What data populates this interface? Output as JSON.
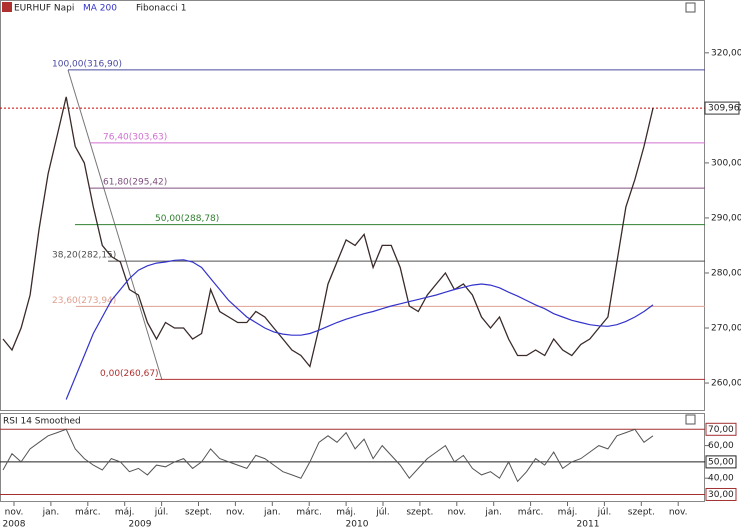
{
  "header": {
    "symbol": "EURHUF Napi",
    "indicator": "MA 200",
    "tool": "Fibonacci 1"
  },
  "chart_data": {
    "type": "line",
    "ylim": [
      255.1,
      329.6
    ],
    "yticks": [
      {
        "value": 260,
        "label": "260,00"
      },
      {
        "value": 270,
        "label": "270,00"
      },
      {
        "value": 280,
        "label": "280,00"
      },
      {
        "value": 290,
        "label": "290,00"
      },
      {
        "value": 300,
        "label": "300,00"
      },
      {
        "value": 310,
        "label": "310,00"
      },
      {
        "value": 320,
        "label": "320,00"
      }
    ],
    "last_price": {
      "value": 309.96,
      "label": "309,96",
      "color": "#cc0000"
    },
    "months": [
      "nov.",
      "jan.",
      "márc.",
      "máj.",
      "júl.",
      "szept.",
      "nov.",
      "jan.",
      "márc.",
      "máj.",
      "júl.",
      "szept.",
      "nov.",
      "jan.",
      "márc.",
      "máj.",
      "júl.",
      "szept.",
      "nov."
    ],
    "years": [
      2008,
      2009,
      2010,
      2011
    ],
    "series": [
      {
        "name": "EURHUF",
        "color": "#3a2a2a",
        "values": [
          268,
          266,
          270,
          276,
          288,
          298,
          305,
          312,
          303,
          300,
          292,
          285,
          283,
          282,
          277,
          276,
          271,
          268,
          271,
          270,
          270,
          268,
          269,
          277,
          273,
          272,
          271,
          271,
          273,
          272,
          270,
          268,
          266,
          265,
          263,
          270,
          278,
          282,
          286,
          285,
          287,
          281,
          285,
          285,
          281,
          274,
          273,
          276,
          278,
          280,
          277,
          278,
          276,
          272,
          270,
          272,
          268,
          265,
          265,
          266,
          265,
          268,
          266,
          265,
          267,
          268,
          270,
          272,
          282,
          292,
          297,
          303,
          309.96
        ]
      },
      {
        "name": "MA 200",
        "color": "#3333cc",
        "values": [
          null,
          null,
          null,
          null,
          null,
          null,
          null,
          257,
          261,
          265,
          269,
          272,
          275,
          277,
          279,
          280.5,
          281.3,
          281.8,
          282,
          282.3,
          282.4,
          282,
          281,
          279,
          277,
          275,
          273.5,
          272,
          271,
          270,
          269.3,
          268.9,
          268.7,
          268.7,
          269,
          269.6,
          270.3,
          271,
          271.6,
          272.1,
          272.6,
          273,
          273.5,
          274,
          274.4,
          274.8,
          275.2,
          275.6,
          276,
          276.5,
          277,
          277.4,
          277.8,
          278,
          277.8,
          277.3,
          276.5,
          275.8,
          275,
          274.2,
          273.5,
          272.6,
          272,
          271.4,
          271,
          270.6,
          270.4,
          270.3,
          270.6,
          271.2,
          272,
          273,
          274.2
        ]
      }
    ],
    "fibonacci": [
      {
        "value": 316.9,
        "label": "100,00(316,90)",
        "color": "#4a4aa0"
      },
      {
        "value": 303.63,
        "label": "76,40(303,63)",
        "color": "#d070d0"
      },
      {
        "value": 295.42,
        "label": "61,80(295,42)",
        "color": "#805080"
      },
      {
        "value": 288.78,
        "label": "50,00(288,78)",
        "color": "#308030"
      },
      {
        "value": 282.15,
        "label": "38,20(282,15)",
        "color": "#505050"
      },
      {
        "value": 273.94,
        "label": "23,60(273,94)",
        "color": "#e0a090"
      },
      {
        "value": 260.67,
        "label": "0,00(260,67)",
        "color": "#b03030"
      }
    ],
    "rsi": {
      "title": "RSI 14 Smoothed",
      "color": "#555555",
      "ylim": [
        26,
        80
      ],
      "yticks": [
        {
          "value": 70,
          "label": "70,00"
        },
        {
          "value": 60,
          "label": "60,00"
        },
        {
          "value": 50,
          "label": "50,00"
        },
        {
          "value": 40,
          "label": "40,00"
        },
        {
          "value": 30,
          "label": "30,00"
        }
      ],
      "values": [
        45,
        55,
        50,
        58,
        62,
        66,
        68,
        70,
        58,
        52,
        48,
        45,
        52,
        50,
        44,
        46,
        42,
        48,
        47,
        50,
        52,
        46,
        50,
        58,
        52,
        50,
        48,
        46,
        54,
        52,
        48,
        44,
        42,
        40,
        50,
        62,
        66,
        62,
        68,
        58,
        64,
        52,
        60,
        54,
        48,
        40,
        46,
        52,
        56,
        60,
        50,
        54,
        46,
        42,
        44,
        40,
        50,
        38,
        44,
        52,
        48,
        56,
        46,
        50,
        52,
        56,
        60,
        58,
        66,
        68,
        70,
        62,
        66
      ]
    }
  }
}
